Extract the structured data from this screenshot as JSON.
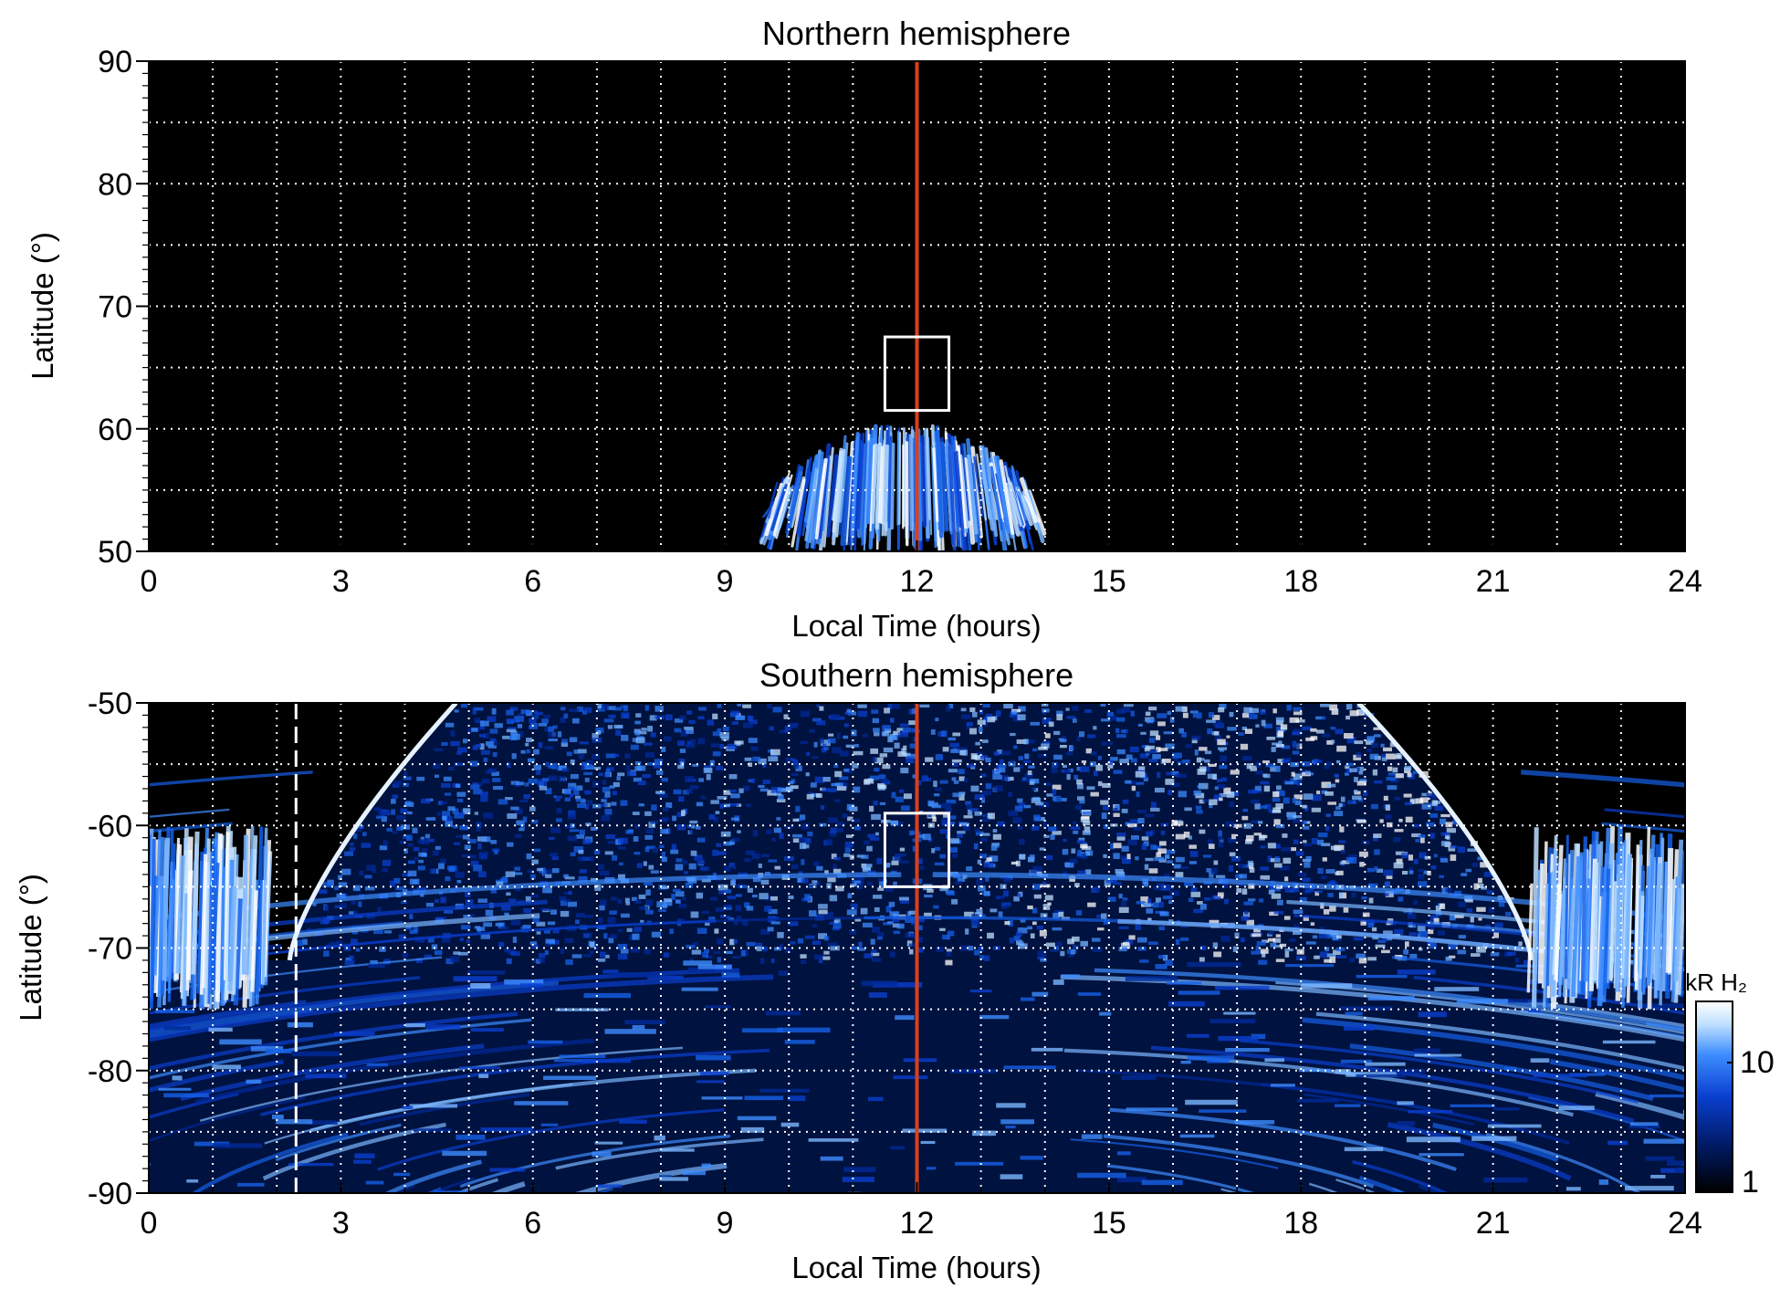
{
  "chart_data": [
    {
      "type": "heatmap",
      "title": "Northern hemisphere",
      "xlabel": "Local Time (hours)",
      "ylabel": "Latitude (°)",
      "xlim": [
        0,
        24
      ],
      "ylim": [
        50,
        90
      ],
      "xticks": [
        "0",
        "3",
        "6",
        "9",
        "12",
        "15",
        "18",
        "21",
        "24"
      ],
      "yticks": [
        "50",
        "60",
        "70",
        "80",
        "90"
      ],
      "grid": true,
      "background": "#000000",
      "noon_line": {
        "x": 12,
        "color": "#d9401c"
      },
      "highlight_box": {
        "x0": 11.5,
        "x1": 12.5,
        "y0": 61.5,
        "y1": 67.5
      },
      "emission_region": {
        "x0": 9.8,
        "x1": 13.8,
        "y0": 50,
        "y1": 61
      }
    },
    {
      "type": "heatmap",
      "title": "Southern hemisphere",
      "xlabel": "Local Time (hours)",
      "ylabel": "Latitude (°)",
      "xlim": [
        0,
        24
      ],
      "ylim": [
        -90,
        -50
      ],
      "xticks": [
        "0",
        "3",
        "6",
        "9",
        "12",
        "15",
        "18",
        "21",
        "24"
      ],
      "yticks": [
        "-90",
        "-80",
        "-70",
        "-60",
        "-50"
      ],
      "grid": true,
      "background": "#000000",
      "noon_line": {
        "x": 12,
        "color": "#d9401c"
      },
      "dashed_line": {
        "x": 2.3,
        "color": "#ffffff"
      },
      "highlight_box": {
        "x0": 11.5,
        "x1": 12.5,
        "y0": -65,
        "y1": -59
      },
      "colorbar": {
        "label": "kR H₂",
        "scale": "log",
        "range": [
          1,
          30
        ],
        "ticks": [
          "1",
          "10"
        ],
        "colors": [
          "#000000",
          "#001a66",
          "#0a3fcf",
          "#3d8cff",
          "#bfe0ff",
          "#ffffff"
        ]
      }
    }
  ]
}
